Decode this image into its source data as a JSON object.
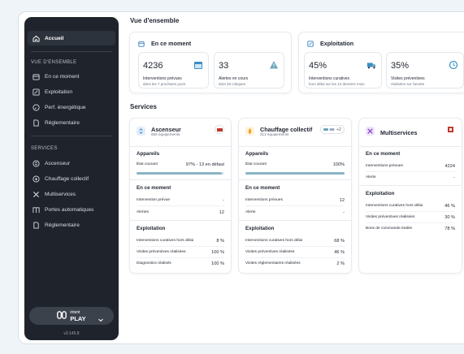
{
  "sidebar": {
    "items_top": [
      {
        "label": "Accueil",
        "icon": "home-icon",
        "active": true
      }
    ],
    "section1_title": "VUE D'ENSEMBLE",
    "section1": [
      {
        "label": "En ce moment",
        "icon": "calendar-icon"
      },
      {
        "label": "Exploitation",
        "icon": "tools-icon"
      },
      {
        "label": "Perf. énergétique",
        "icon": "gauge-icon"
      },
      {
        "label": "Réglementaire",
        "icon": "document-icon"
      }
    ],
    "section2_title": "SERVICES",
    "section2": [
      {
        "label": "Ascenseur",
        "icon": "elevator-icon"
      },
      {
        "label": "Chauffage collectif",
        "icon": "heating-icon"
      },
      {
        "label": "Multiservices",
        "icon": "multiservice-icon"
      },
      {
        "label": "Portes automatiques",
        "icon": "door-icon"
      },
      {
        "label": "Réglementaire",
        "icon": "document-icon"
      }
    ],
    "brand_small": "intent",
    "brand_big": "PLAY",
    "version": "v3.145.8"
  },
  "overview": {
    "title": "Vue d'ensemble",
    "now": {
      "title": "En ce moment",
      "stats": [
        {
          "value": "4236",
          "l1": "Interventions prévues",
          "l2": "dans les 7 prochains jours"
        },
        {
          "value": "33",
          "l1": "Alertes en cours",
          "l2": "dont 33 critiques"
        }
      ]
    },
    "exploitation": {
      "title": "Exploitation",
      "stats": [
        {
          "value": "45%",
          "l1": "Interventions curatives",
          "l2": "hors délai sur les 12 derniers mois"
        },
        {
          "value": "35%",
          "l1": "Visites préventives",
          "l2": "réalisées sur l'année"
        }
      ]
    }
  },
  "services": {
    "title": "Services",
    "ascenseur": {
      "name": "Ascenseur",
      "sub": "555 équipements",
      "appareils": "Appareils",
      "etat_label": "État courant",
      "etat_value": "97% - 13 en défaut",
      "etat_fraction": 0.97,
      "now_title": "En ce moment",
      "now_rows": [
        {
          "label": "Intervention prévue",
          "value": "-"
        },
        {
          "label": "Alertes",
          "value": "12"
        }
      ],
      "exp_title": "Exploitation",
      "exp_rows": [
        {
          "label": "Interventions curatives hors délai",
          "value": "8 %"
        },
        {
          "label": "Visites préventives réalisées",
          "value": "100 %"
        },
        {
          "label": "Diagnostics réalisés",
          "value": "100 %"
        }
      ]
    },
    "chauffage": {
      "name": "Chauffage collectif",
      "sub": "313 équipements",
      "badge": "+2",
      "appareils": "Appareils",
      "etat_label": "État courant",
      "etat_value": "100%",
      "etat_fraction": 1.0,
      "now_title": "En ce moment",
      "now_rows": [
        {
          "label": "Interventions prévues",
          "value": "12"
        },
        {
          "label": "Alerte",
          "value": "-"
        }
      ],
      "exp_title": "Exploitation",
      "exp_rows": [
        {
          "label": "Interventions curatives hors délai",
          "value": "68 %"
        },
        {
          "label": "Visites préventives réalisées",
          "value": "46 %"
        },
        {
          "label": "Visites réglementaires réalisées",
          "value": "2 %"
        }
      ]
    },
    "multiservices": {
      "name": "Multiservices",
      "now_title": "En ce moment",
      "now_rows": [
        {
          "label": "Interventions prévues",
          "value": "4224"
        },
        {
          "label": "Alerte",
          "value": "-"
        }
      ],
      "exp_title": "Exploitation",
      "exp_rows": [
        {
          "label": "Interventions curatives hors délai",
          "value": "46 %"
        },
        {
          "label": "Visites préventives réalisées",
          "value": "30 %"
        },
        {
          "label": "Bons de commande traités",
          "value": "78 %"
        }
      ]
    }
  },
  "colors": {
    "sidebar": "#1f242c",
    "bar_fill": "#8ab4c4",
    "accent_blue": "#3b82c4"
  }
}
